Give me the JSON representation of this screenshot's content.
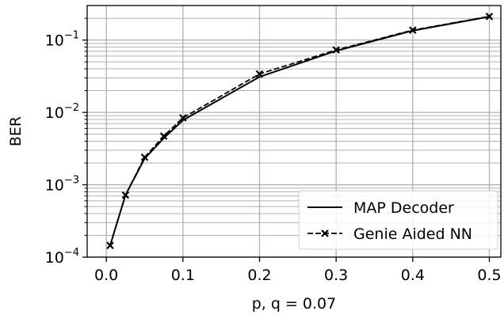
{
  "chart_data": {
    "type": "line",
    "xlabel": "p, q = 0.07",
    "ylabel": "BER",
    "xlim": [
      -0.025,
      0.515
    ],
    "ylim": [
      0.0001,
      0.3
    ],
    "y_scale": "log",
    "grid": true,
    "legend_position": "bottom-right",
    "x_ticks": [
      {
        "value": 0.0,
        "label": "0.0"
      },
      {
        "value": 0.1,
        "label": "0.1"
      },
      {
        "value": 0.2,
        "label": "0.2"
      },
      {
        "value": 0.3,
        "label": "0.3"
      },
      {
        "value": 0.4,
        "label": "0.4"
      },
      {
        "value": 0.5,
        "label": "0.5"
      }
    ],
    "y_ticks": [
      {
        "value": 0.0001,
        "base": "10",
        "exp": "−4"
      },
      {
        "value": 0.001,
        "base": "10",
        "exp": "−3"
      },
      {
        "value": 0.01,
        "base": "10",
        "exp": "−2"
      },
      {
        "value": 0.1,
        "base": "10",
        "exp": "−1"
      }
    ],
    "series": [
      {
        "name": "MAP Decoder",
        "style": "solid",
        "marker": "none",
        "color": "#000000",
        "x": [
          0.005,
          0.025,
          0.05,
          0.075,
          0.1,
          0.2,
          0.3,
          0.4,
          0.5
        ],
        "y": [
          0.000145,
          0.00072,
          0.0023,
          0.0044,
          0.0078,
          0.031,
          0.071,
          0.135,
          0.21
        ]
      },
      {
        "name": "Genie Aided NN",
        "style": "dashed",
        "marker": "x",
        "color": "#000000",
        "x": [
          0.005,
          0.025,
          0.05,
          0.075,
          0.1,
          0.2,
          0.3,
          0.4,
          0.5
        ],
        "y": [
          0.000145,
          0.00072,
          0.0024,
          0.0047,
          0.0084,
          0.034,
          0.073,
          0.137,
          0.212
        ]
      }
    ]
  }
}
